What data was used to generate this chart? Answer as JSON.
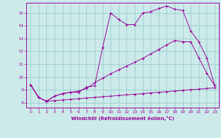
{
  "xlabel": "Windchill (Refroidissement éolien,°C)",
  "xlim": [
    -0.5,
    23.5
  ],
  "ylim": [
    7.6,
    15.8
  ],
  "yticks": [
    8,
    9,
    10,
    11,
    12,
    13,
    14,
    15
  ],
  "xticks": [
    0,
    1,
    2,
    3,
    4,
    5,
    6,
    7,
    8,
    9,
    10,
    11,
    12,
    13,
    14,
    15,
    16,
    17,
    18,
    19,
    20,
    21,
    22,
    23
  ],
  "bg_color": "#cceaea",
  "line_color": "#990099",
  "grid_color": "#99cccc",
  "line1_x": [
    0,
    1,
    2,
    3,
    4,
    5,
    6,
    7,
    8,
    9,
    10,
    11,
    12,
    13,
    14,
    15,
    16,
    17,
    18,
    19,
    20,
    21,
    22,
    23
  ],
  "line1_y": [
    9.4,
    8.4,
    8.1,
    8.5,
    8.7,
    8.8,
    8.8,
    9.2,
    9.3,
    12.3,
    15.0,
    14.5,
    14.1,
    14.1,
    15.0,
    15.1,
    15.35,
    15.55,
    15.3,
    15.2,
    13.6,
    12.75,
    11.5,
    9.3
  ],
  "line2_x": [
    0,
    1,
    2,
    3,
    4,
    5,
    6,
    7,
    8,
    9,
    10,
    11,
    12,
    13,
    14,
    15,
    16,
    17,
    18,
    19,
    20,
    21,
    22,
    23
  ],
  "line2_y": [
    9.4,
    8.4,
    8.1,
    8.5,
    8.7,
    8.8,
    8.9,
    9.1,
    9.55,
    9.9,
    10.25,
    10.55,
    10.85,
    11.15,
    11.45,
    11.8,
    12.15,
    12.5,
    12.85,
    12.75,
    12.75,
    11.5,
    10.3,
    9.3
  ],
  "line3_x": [
    0,
    1,
    2,
    3,
    4,
    5,
    6,
    7,
    8,
    9,
    10,
    11,
    12,
    13,
    14,
    15,
    16,
    17,
    18,
    19,
    20,
    21,
    22,
    23
  ],
  "line3_y": [
    9.4,
    8.4,
    8.1,
    8.15,
    8.2,
    8.25,
    8.3,
    8.35,
    8.4,
    8.45,
    8.5,
    8.55,
    8.6,
    8.65,
    8.7,
    8.75,
    8.8,
    8.85,
    8.9,
    8.95,
    9.0,
    9.05,
    9.1,
    9.15
  ]
}
